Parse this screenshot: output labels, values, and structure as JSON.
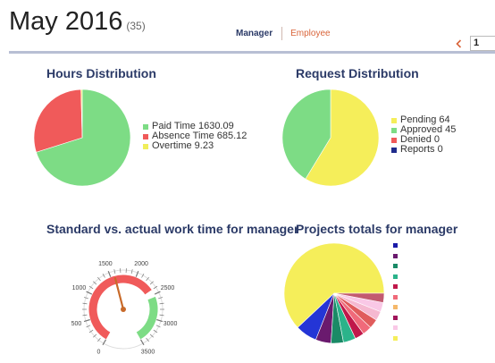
{
  "header": {
    "title": "May 2016",
    "count": "(35)"
  },
  "tabs": {
    "manager": "Manager",
    "employee": "Employee"
  },
  "pager": {
    "prev_icon": "chevron-left-icon",
    "page_value": "1"
  },
  "cards": {
    "hours": {
      "title": "Hours Distribution"
    },
    "requests": {
      "title": "Request Distribution"
    },
    "gauge": {
      "title": "Standard vs. actual work time for manager"
    },
    "projects": {
      "title": "Projects totals for manager"
    }
  },
  "chart_data": [
    {
      "type": "pie",
      "title": "Hours Distribution",
      "series": [
        {
          "name": "Paid Time",
          "label": "Paid Time 1630.09",
          "value": 1630.09,
          "color": "#7ddc85"
        },
        {
          "name": "Absence Time",
          "label": "Absence Time 685.12",
          "value": 685.12,
          "color": "#f05a5a"
        },
        {
          "name": "Overtime",
          "label": "Overtime 9.23",
          "value": 9.23,
          "color": "#f0ee5a"
        }
      ],
      "legend": "right"
    },
    {
      "type": "pie",
      "title": "Request Distribution",
      "series": [
        {
          "name": "Pending",
          "label": "Pending 64",
          "value": 64,
          "color": "#f5ee5a"
        },
        {
          "name": "Approved",
          "label": "Approved 45",
          "value": 45,
          "color": "#7ddc85"
        },
        {
          "name": "Denied",
          "label": "Denied 0",
          "value": 0,
          "color": "#f05a5a"
        },
        {
          "name": "Reports",
          "label": "Reports 0",
          "value": 0,
          "color": "#1f2c8c"
        }
      ],
      "legend": "right"
    },
    {
      "type": "gauge",
      "title": "Standard vs. actual work time for manager",
      "min": 0,
      "max": 3500,
      "tick_labels": [
        "0",
        "500",
        "1000",
        "1500",
        "2000",
        "2500",
        "3000",
        "3500"
      ],
      "value": 1580,
      "bands": [
        {
          "from": 0,
          "to": 2400,
          "color": "#f05a5a"
        },
        {
          "from": 2400,
          "to": 2550,
          "color": "#ffffff"
        },
        {
          "from": 2550,
          "to": 3500,
          "color": "#7ddc85"
        }
      ]
    },
    {
      "type": "pie",
      "title": "Projects totals for manager",
      "series": [
        {
          "value": 62,
          "color": "#f5ee5a"
        },
        {
          "value": 7,
          "color": "#2435d6"
        },
        {
          "value": 5,
          "color": "#6a1a6e"
        },
        {
          "value": 4,
          "color": "#1a8a66"
        },
        {
          "value": 4,
          "color": "#2bb38a"
        },
        {
          "value": 3,
          "color": "#c0184a"
        },
        {
          "value": 3,
          "color": "#f06a7a"
        },
        {
          "value": 3,
          "color": "#e05c5c"
        },
        {
          "value": 3,
          "color": "#f5b8d0"
        },
        {
          "value": 3,
          "color": "#f9c8e6"
        },
        {
          "value": 3,
          "color": "#c25a70"
        }
      ],
      "legend": "right",
      "legend_colors": [
        "#1a1aa8",
        "#6a1a6e",
        "#1a8a66",
        "#2bb38a",
        "#c0184a",
        "#f06a7a",
        "#f5b86a",
        "#a0145a",
        "#f9c8e6",
        "#f5ee5a"
      ]
    }
  ]
}
